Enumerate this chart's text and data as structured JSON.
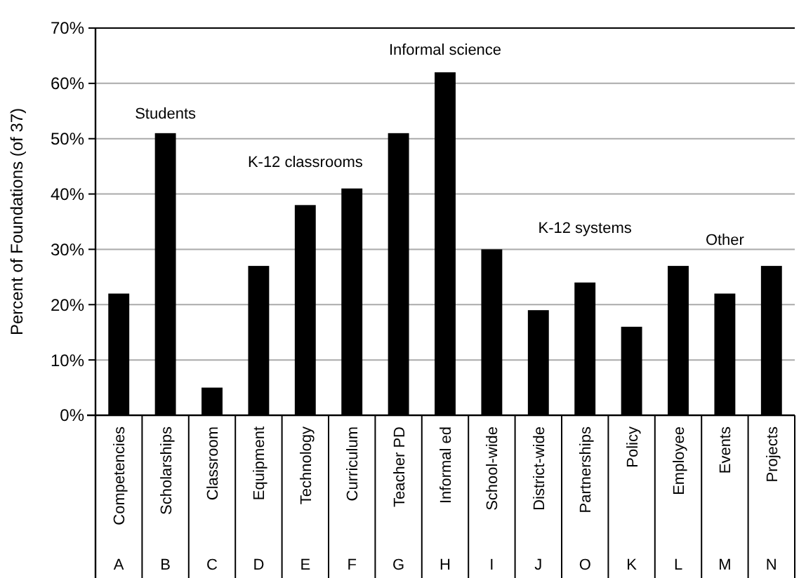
{
  "chart_data": {
    "type": "bar",
    "ylabel": "Percent of Foundations (of 37)",
    "categories": [
      "Competencies",
      "Scholarships",
      "Classroom",
      "Equipment",
      "Technology",
      "Curriculum",
      "Teacher PD",
      "Informal ed",
      "School-wide",
      "District-wide",
      "Partnerships",
      "Policy",
      "Employee",
      "Events",
      "Projects"
    ],
    "values": [
      22,
      51,
      5,
      27,
      38,
      41,
      51,
      62,
      30,
      19,
      24,
      16,
      27,
      22,
      27
    ],
    "color": "#000000",
    "ylim": [
      0,
      70
    ],
    "yticks": [
      {
        "value": 0,
        "label": "0%"
      },
      {
        "value": 10,
        "label": "10%"
      },
      {
        "value": 20,
        "label": "20%"
      },
      {
        "value": 30,
        "label": "30%"
      },
      {
        "value": 40,
        "label": "40%"
      },
      {
        "value": 50,
        "label": "50%"
      },
      {
        "value": 60,
        "label": "60%"
      },
      {
        "value": 70,
        "label": "70%"
      }
    ],
    "grid": "y",
    "annotations": [
      "Students",
      "K-12 classrooms",
      "Informal science",
      "K-12 systems",
      "Other",
      "A",
      "B",
      "C",
      "D",
      "E",
      "F",
      "G",
      "H",
      "I",
      "J",
      "O",
      "K",
      "L",
      "M",
      "N"
    ]
  }
}
